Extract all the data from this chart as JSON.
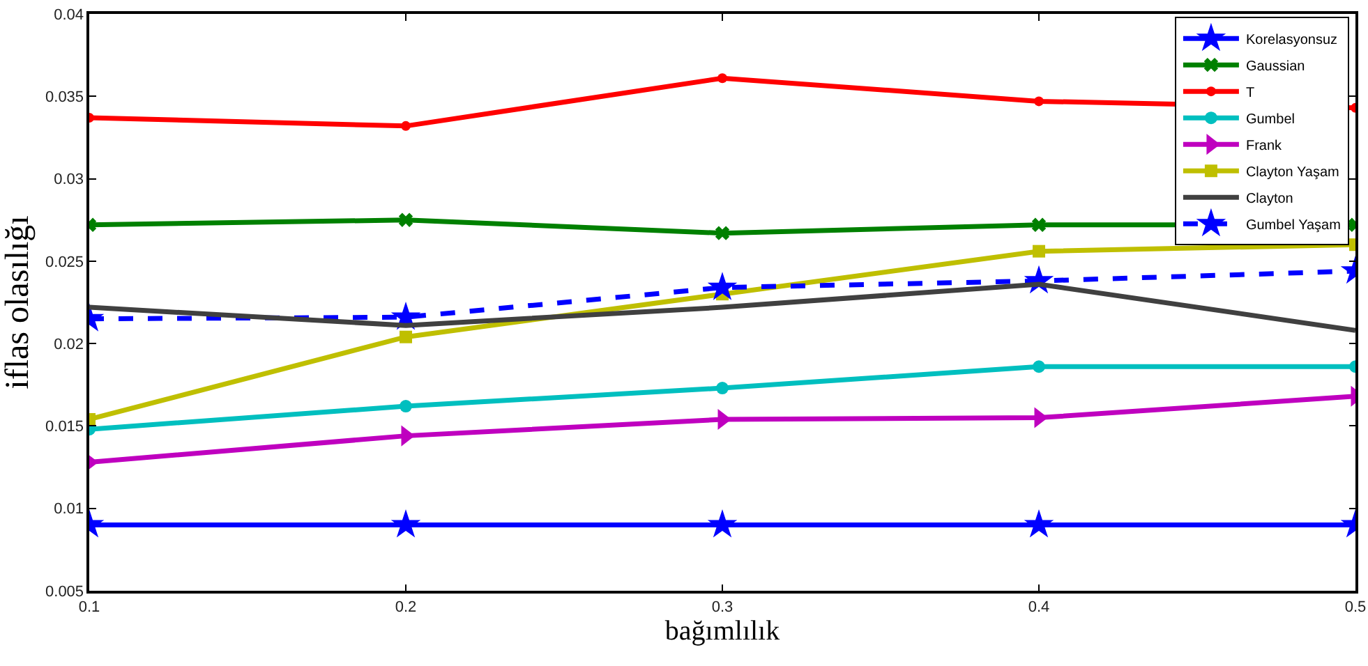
{
  "chart_data": {
    "type": "line",
    "xlabel": "bağımlılık",
    "ylabel": "iflas olasılığı",
    "x": [
      0.1,
      0.2,
      0.3,
      0.4,
      0.5
    ],
    "xlim": [
      0.1,
      0.5
    ],
    "xticks": [
      0.1,
      0.2,
      0.3,
      0.4,
      0.5
    ],
    "ylim": [
      0.005,
      0.04
    ],
    "yticks": [
      0.005,
      0.01,
      0.015,
      0.02,
      0.025,
      0.03,
      0.035,
      0.04
    ],
    "grid": false,
    "legend": "top right",
    "series": [
      {
        "name": "Korelasyonsuz",
        "color": "#0000ff",
        "marker": "star",
        "values": [
          0.009,
          0.009,
          0.009,
          0.009,
          0.009
        ]
      },
      {
        "name": "Gaussian",
        "color": "#008000",
        "marker": "cross",
        "values": [
          0.0272,
          0.0275,
          0.0267,
          0.0272,
          0.0272
        ]
      },
      {
        "name": "T",
        "color": "#ff0000",
        "marker": "circle",
        "values": [
          0.0337,
          0.0332,
          0.0361,
          0.0347,
          0.0343
        ]
      },
      {
        "name": "Gumbel",
        "color": "#00bfbf",
        "marker": "circle",
        "values": [
          0.0148,
          0.0162,
          0.0173,
          0.0186,
          0.0186
        ]
      },
      {
        "name": "Frank",
        "color": "#bf00bf",
        "marker": "triangle",
        "values": [
          0.0128,
          0.0144,
          0.0154,
          0.0155,
          0.0168
        ]
      },
      {
        "name": "Clayton Yaşam",
        "color": "#bfbf00",
        "marker": "square",
        "values": [
          0.0154,
          0.0204,
          0.023,
          0.0256,
          0.026
        ]
      },
      {
        "name": "Clayton",
        "color": "#404040",
        "marker": "none",
        "values": [
          0.0222,
          0.0211,
          0.0222,
          0.0236,
          0.0208
        ]
      },
      {
        "name": "Gumbel Yaşam",
        "color": "#0000ff",
        "marker": "star",
        "line_style": "dashed",
        "values": [
          0.0215,
          0.0216,
          0.0234,
          0.0238,
          0.0244
        ]
      }
    ]
  }
}
